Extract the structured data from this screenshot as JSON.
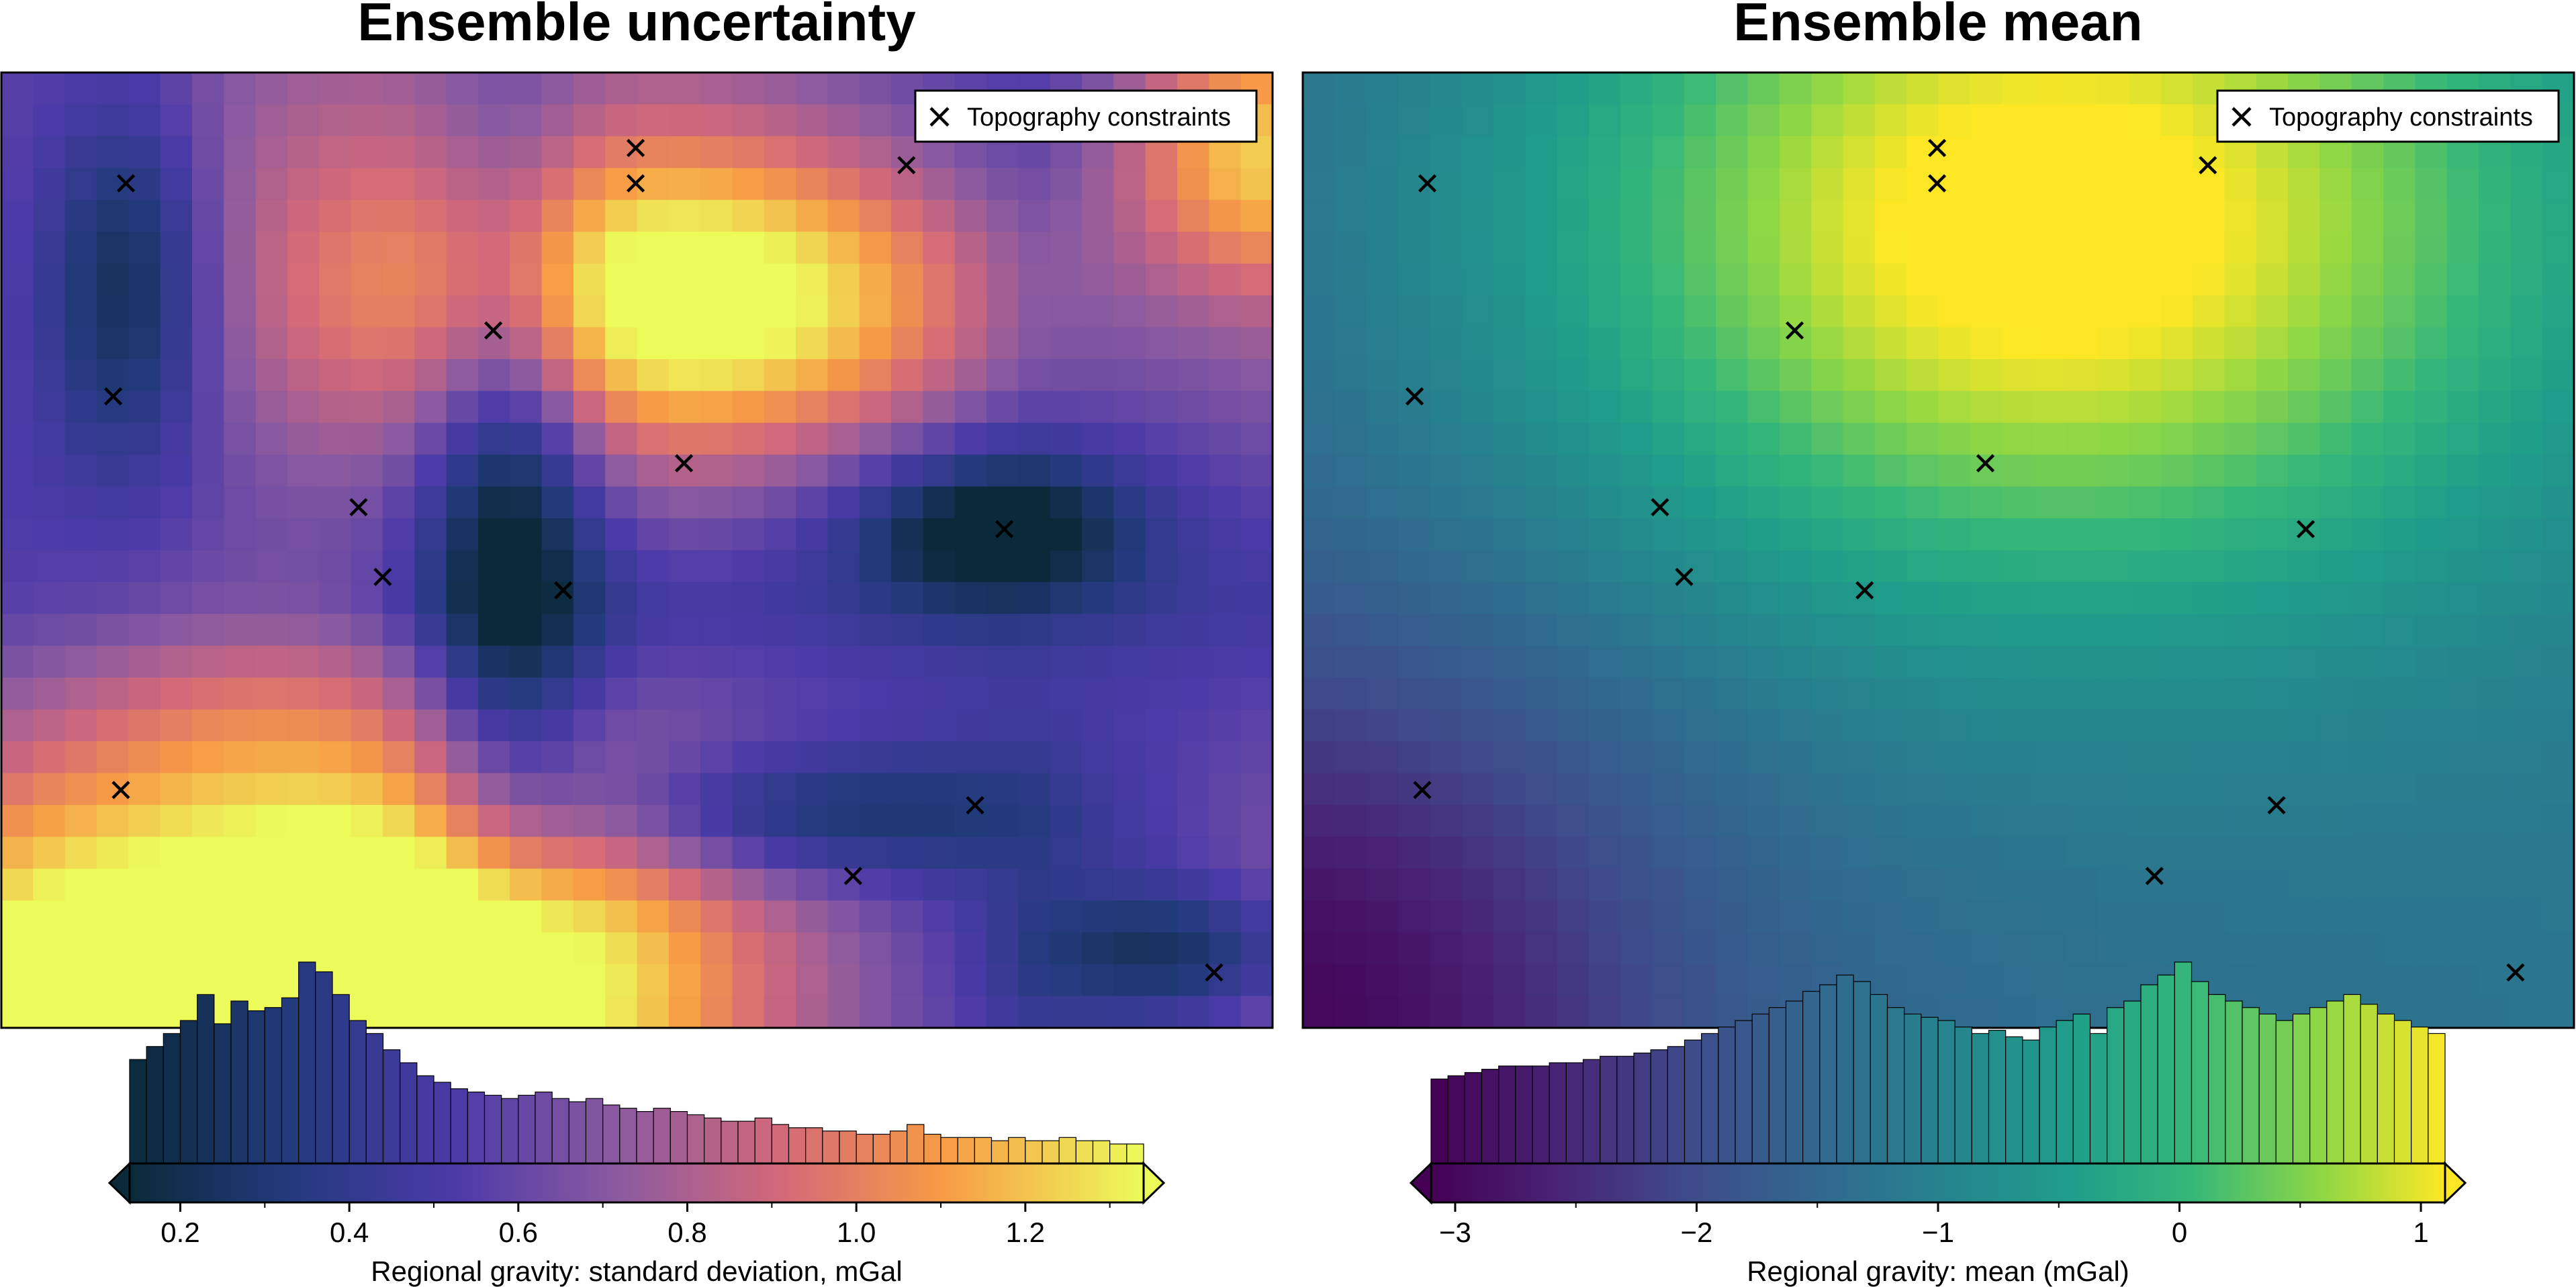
{
  "chart_data": [
    {
      "type": "heatmap",
      "title": "Ensemble uncertainty",
      "colormap": "plasma-like (dark navy → purple → orange → yellow)",
      "legend": {
        "label": "Topography constraints",
        "position": "top-right"
      },
      "grid": false,
      "constraints": [
        [
          0.098,
          0.884
        ],
        [
          0.088,
          0.661
        ],
        [
          0.094,
          0.249
        ],
        [
          0.499,
          0.921
        ],
        [
          0.499,
          0.884
        ],
        [
          0.712,
          0.903
        ],
        [
          0.387,
          0.73
        ],
        [
          0.537,
          0.591
        ],
        [
          0.281,
          0.545
        ],
        [
          0.3,
          0.472
        ],
        [
          0.442,
          0.458
        ],
        [
          0.789,
          0.522
        ],
        [
          0.766,
          0.233
        ],
        [
          0.67,
          0.159
        ],
        [
          0.954,
          0.058
        ]
      ],
      "colorbar": {
        "label": "Regional gravity:  standard deviation, mGal",
        "range": [
          0.14,
          1.34
        ],
        "ticks": [
          "0.2",
          "0.4",
          "0.6",
          "0.8",
          "1.0",
          "1.2"
        ],
        "tick_values": [
          0.2,
          0.4,
          0.6,
          0.8,
          1.0,
          1.2
        ],
        "extend": "both"
      },
      "histogram": [
        0.32,
        0.36,
        0.4,
        0.44,
        0.52,
        0.43,
        0.5,
        0.47,
        0.48,
        0.51,
        0.62,
        0.59,
        0.52,
        0.44,
        0.4,
        0.35,
        0.31,
        0.27,
        0.25,
        0.23,
        0.22,
        0.21,
        0.2,
        0.21,
        0.22,
        0.2,
        0.19,
        0.2,
        0.18,
        0.17,
        0.16,
        0.17,
        0.16,
        0.15,
        0.14,
        0.13,
        0.13,
        0.14,
        0.12,
        0.11,
        0.11,
        0.1,
        0.1,
        0.09,
        0.09,
        0.1,
        0.12,
        0.09,
        0.08,
        0.08,
        0.08,
        0.07,
        0.08,
        0.07,
        0.07,
        0.08,
        0.07,
        0.07,
        0.06,
        0.06
      ]
    },
    {
      "type": "heatmap",
      "title": "Ensemble mean",
      "colormap": "viridis",
      "legend": {
        "label": "Topography constraints",
        "position": "top-right"
      },
      "grid": false,
      "constraints": [
        [
          0.098,
          0.884
        ],
        [
          0.088,
          0.661
        ],
        [
          0.094,
          0.249
        ],
        [
          0.499,
          0.921
        ],
        [
          0.499,
          0.884
        ],
        [
          0.712,
          0.903
        ],
        [
          0.387,
          0.73
        ],
        [
          0.537,
          0.591
        ],
        [
          0.281,
          0.545
        ],
        [
          0.3,
          0.472
        ],
        [
          0.442,
          0.458
        ],
        [
          0.789,
          0.522
        ],
        [
          0.766,
          0.233
        ],
        [
          0.67,
          0.159
        ],
        [
          0.954,
          0.058
        ]
      ],
      "colorbar": {
        "label": "Regional gravity:  mean (mGal)",
        "range": [
          -3.1,
          1.1
        ],
        "ticks": [
          "−3",
          "−2",
          "−1",
          "0",
          "1"
        ],
        "tick_values": [
          -3,
          -2,
          -1,
          0,
          1
        ],
        "extend": "both"
      },
      "histogram": [
        0.26,
        0.27,
        0.28,
        0.29,
        0.3,
        0.3,
        0.3,
        0.31,
        0.31,
        0.32,
        0.33,
        0.33,
        0.34,
        0.35,
        0.36,
        0.38,
        0.4,
        0.42,
        0.44,
        0.46,
        0.48,
        0.5,
        0.53,
        0.55,
        0.58,
        0.56,
        0.52,
        0.48,
        0.46,
        0.45,
        0.44,
        0.42,
        0.4,
        0.41,
        0.39,
        0.38,
        0.42,
        0.44,
        0.46,
        0.4,
        0.48,
        0.5,
        0.55,
        0.58,
        0.62,
        0.56,
        0.52,
        0.5,
        0.48,
        0.46,
        0.44,
        0.46,
        0.48,
        0.5,
        0.52,
        0.49,
        0.46,
        0.44,
        0.42,
        0.4
      ]
    }
  ]
}
